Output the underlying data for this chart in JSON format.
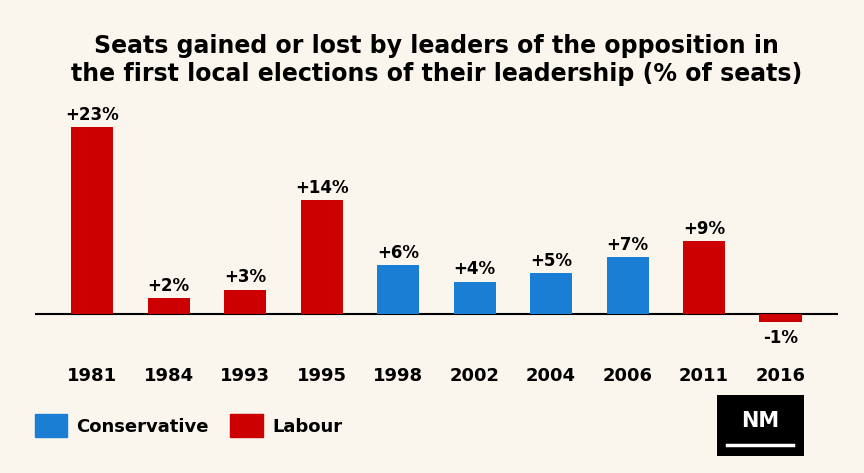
{
  "title": "Seats gained or lost by leaders of the opposition in\nthe first local elections of their leadership (% of seats)",
  "years": [
    "1981",
    "1984",
    "1993",
    "1995",
    "1998",
    "2002",
    "2004",
    "2006",
    "2011",
    "2016"
  ],
  "values": [
    23,
    2,
    3,
    14,
    6,
    4,
    5,
    7,
    9,
    -1
  ],
  "colors": [
    "#cc0000",
    "#cc0000",
    "#cc0000",
    "#cc0000",
    "#1a7fd4",
    "#1a7fd4",
    "#1a7fd4",
    "#1a7fd4",
    "#cc0000",
    "#cc0000"
  ],
  "labels": [
    "+23%",
    "+2%",
    "+3%",
    "+14%",
    "+6%",
    "+4%",
    "+5%",
    "+7%",
    "+9%",
    "-1%"
  ],
  "background_color": "#faf5ed",
  "bar_color_conservative": "#1a7fd4",
  "bar_color_labour": "#cc0000",
  "title_fontsize": 17,
  "label_fontsize": 12,
  "tick_fontsize": 13,
  "ylim": [
    -5,
    27
  ],
  "legend_conservative": "Conservative",
  "legend_labour": "Labour"
}
